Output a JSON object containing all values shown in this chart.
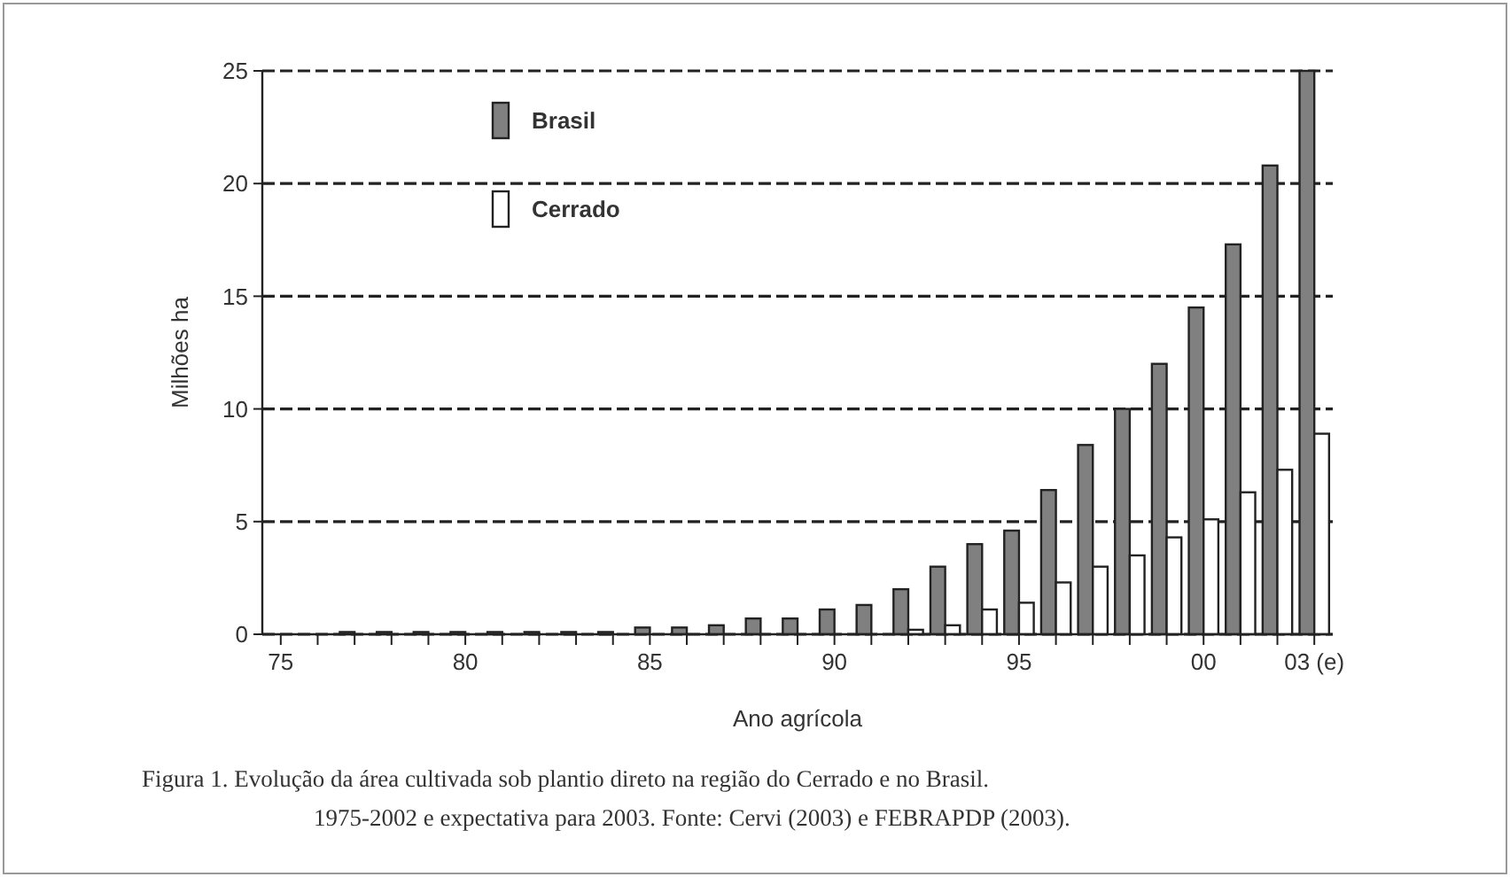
{
  "chart_data": {
    "type": "bar",
    "xlabel": "Ano agrícola",
    "ylabel": "Milhões ha",
    "categories": [
      "75",
      null,
      null,
      null,
      null,
      "80",
      null,
      null,
      null,
      null,
      "85",
      null,
      null,
      null,
      null,
      "90",
      null,
      null,
      null,
      null,
      "95",
      null,
      null,
      null,
      null,
      "00",
      null,
      null,
      "03 (e)"
    ],
    "series": [
      {
        "name": "Brasil",
        "color": "#808080",
        "values": [
          0,
          0,
          0.1,
          0.1,
          0.1,
          0.1,
          0.1,
          0.1,
          0.1,
          0.1,
          0.3,
          0.3,
          0.4,
          0.7,
          0.7,
          1.1,
          1.3,
          2.0,
          3.0,
          4.0,
          4.6,
          6.4,
          8.4,
          10.0,
          12.0,
          14.5,
          17.3,
          20.8,
          25
        ]
      },
      {
        "name": "Cerrado",
        "color": "#ffffff",
        "values": [
          0,
          0,
          0,
          0,
          0,
          0,
          0,
          0,
          0,
          0,
          0,
          0,
          0,
          0,
          0,
          0,
          null,
          0.2,
          0.4,
          1.1,
          1.4,
          2.3,
          3.0,
          3.5,
          4.3,
          5.1,
          6.3,
          7.3,
          8.9
        ]
      }
    ],
    "ylim": [
      0,
      25
    ],
    "yticks": [
      0,
      5,
      10,
      15,
      20,
      25
    ],
    "grid": "y",
    "legend": "top left",
    "annotations": [
      "Figura 1. Evolução da área cultivada sob plantio direto na região do Cerrado e no Brasil.",
      "1975-2002 e expectativa para 2003. Fonte: Cervi (2003) e FEBRAPDP (2003)."
    ]
  }
}
